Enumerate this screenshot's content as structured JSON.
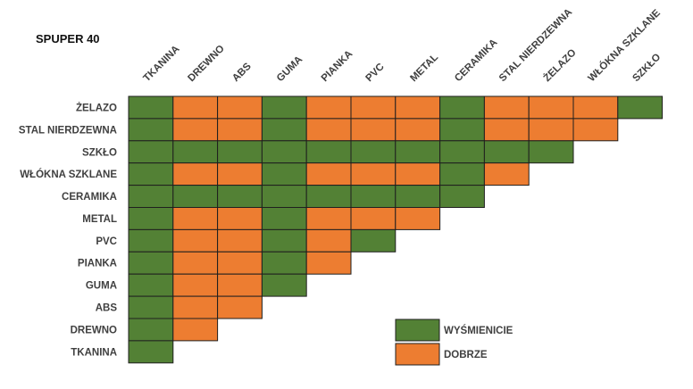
{
  "title": "SPUPER 40",
  "colors": {
    "excellent": "#538135",
    "good": "#ED7D31"
  },
  "chart_data": {
    "type": "heatmap",
    "title": "SPUPER 40",
    "columns": [
      "TKANINA",
      "DREWNO",
      "ABS",
      "GUMA",
      "PIANKA",
      "PVC",
      "METAL",
      "CERAMIKA",
      "STAL NIERDZEWNA",
      "ŻELAZO",
      "WŁÓKNA SZKLANE",
      "SZKŁO"
    ],
    "rows": [
      {
        "label": "ŻELAZO",
        "values": [
          "W",
          "D",
          "D",
          "W",
          "D",
          "D",
          "D",
          "W",
          "D",
          "D",
          "D",
          "W"
        ]
      },
      {
        "label": "STAL NIERDZEWNA",
        "values": [
          "W",
          "D",
          "D",
          "W",
          "D",
          "D",
          "D",
          "W",
          "D",
          "D",
          "D"
        ]
      },
      {
        "label": "SZKŁO",
        "values": [
          "W",
          "W",
          "W",
          "W",
          "W",
          "W",
          "W",
          "W",
          "W",
          "W"
        ]
      },
      {
        "label": "WŁÓKNA SZKLANE",
        "values": [
          "W",
          "D",
          "D",
          "W",
          "D",
          "D",
          "D",
          "W",
          "D"
        ]
      },
      {
        "label": "CERAMIKA",
        "values": [
          "W",
          "W",
          "W",
          "W",
          "W",
          "W",
          "W",
          "W"
        ]
      },
      {
        "label": "METAL",
        "values": [
          "W",
          "D",
          "D",
          "W",
          "D",
          "D",
          "D"
        ]
      },
      {
        "label": "PVC",
        "values": [
          "W",
          "D",
          "D",
          "W",
          "D",
          "W"
        ]
      },
      {
        "label": "PIANKA",
        "values": [
          "W",
          "D",
          "D",
          "W",
          "D"
        ]
      },
      {
        "label": "GUMA",
        "values": [
          "W",
          "D",
          "D",
          "W"
        ]
      },
      {
        "label": "ABS",
        "values": [
          "W",
          "D",
          "D"
        ]
      },
      {
        "label": "DREWNO",
        "values": [
          "W",
          "D"
        ]
      },
      {
        "label": "TKANINA",
        "values": [
          "W"
        ]
      }
    ],
    "legend": [
      {
        "key": "W",
        "label": "WYŚMIENICIE",
        "color": "#538135"
      },
      {
        "key": "D",
        "label": "DOBRZE",
        "color": "#ED7D31"
      }
    ],
    "legend_position": "bottom-center",
    "grid": true
  }
}
